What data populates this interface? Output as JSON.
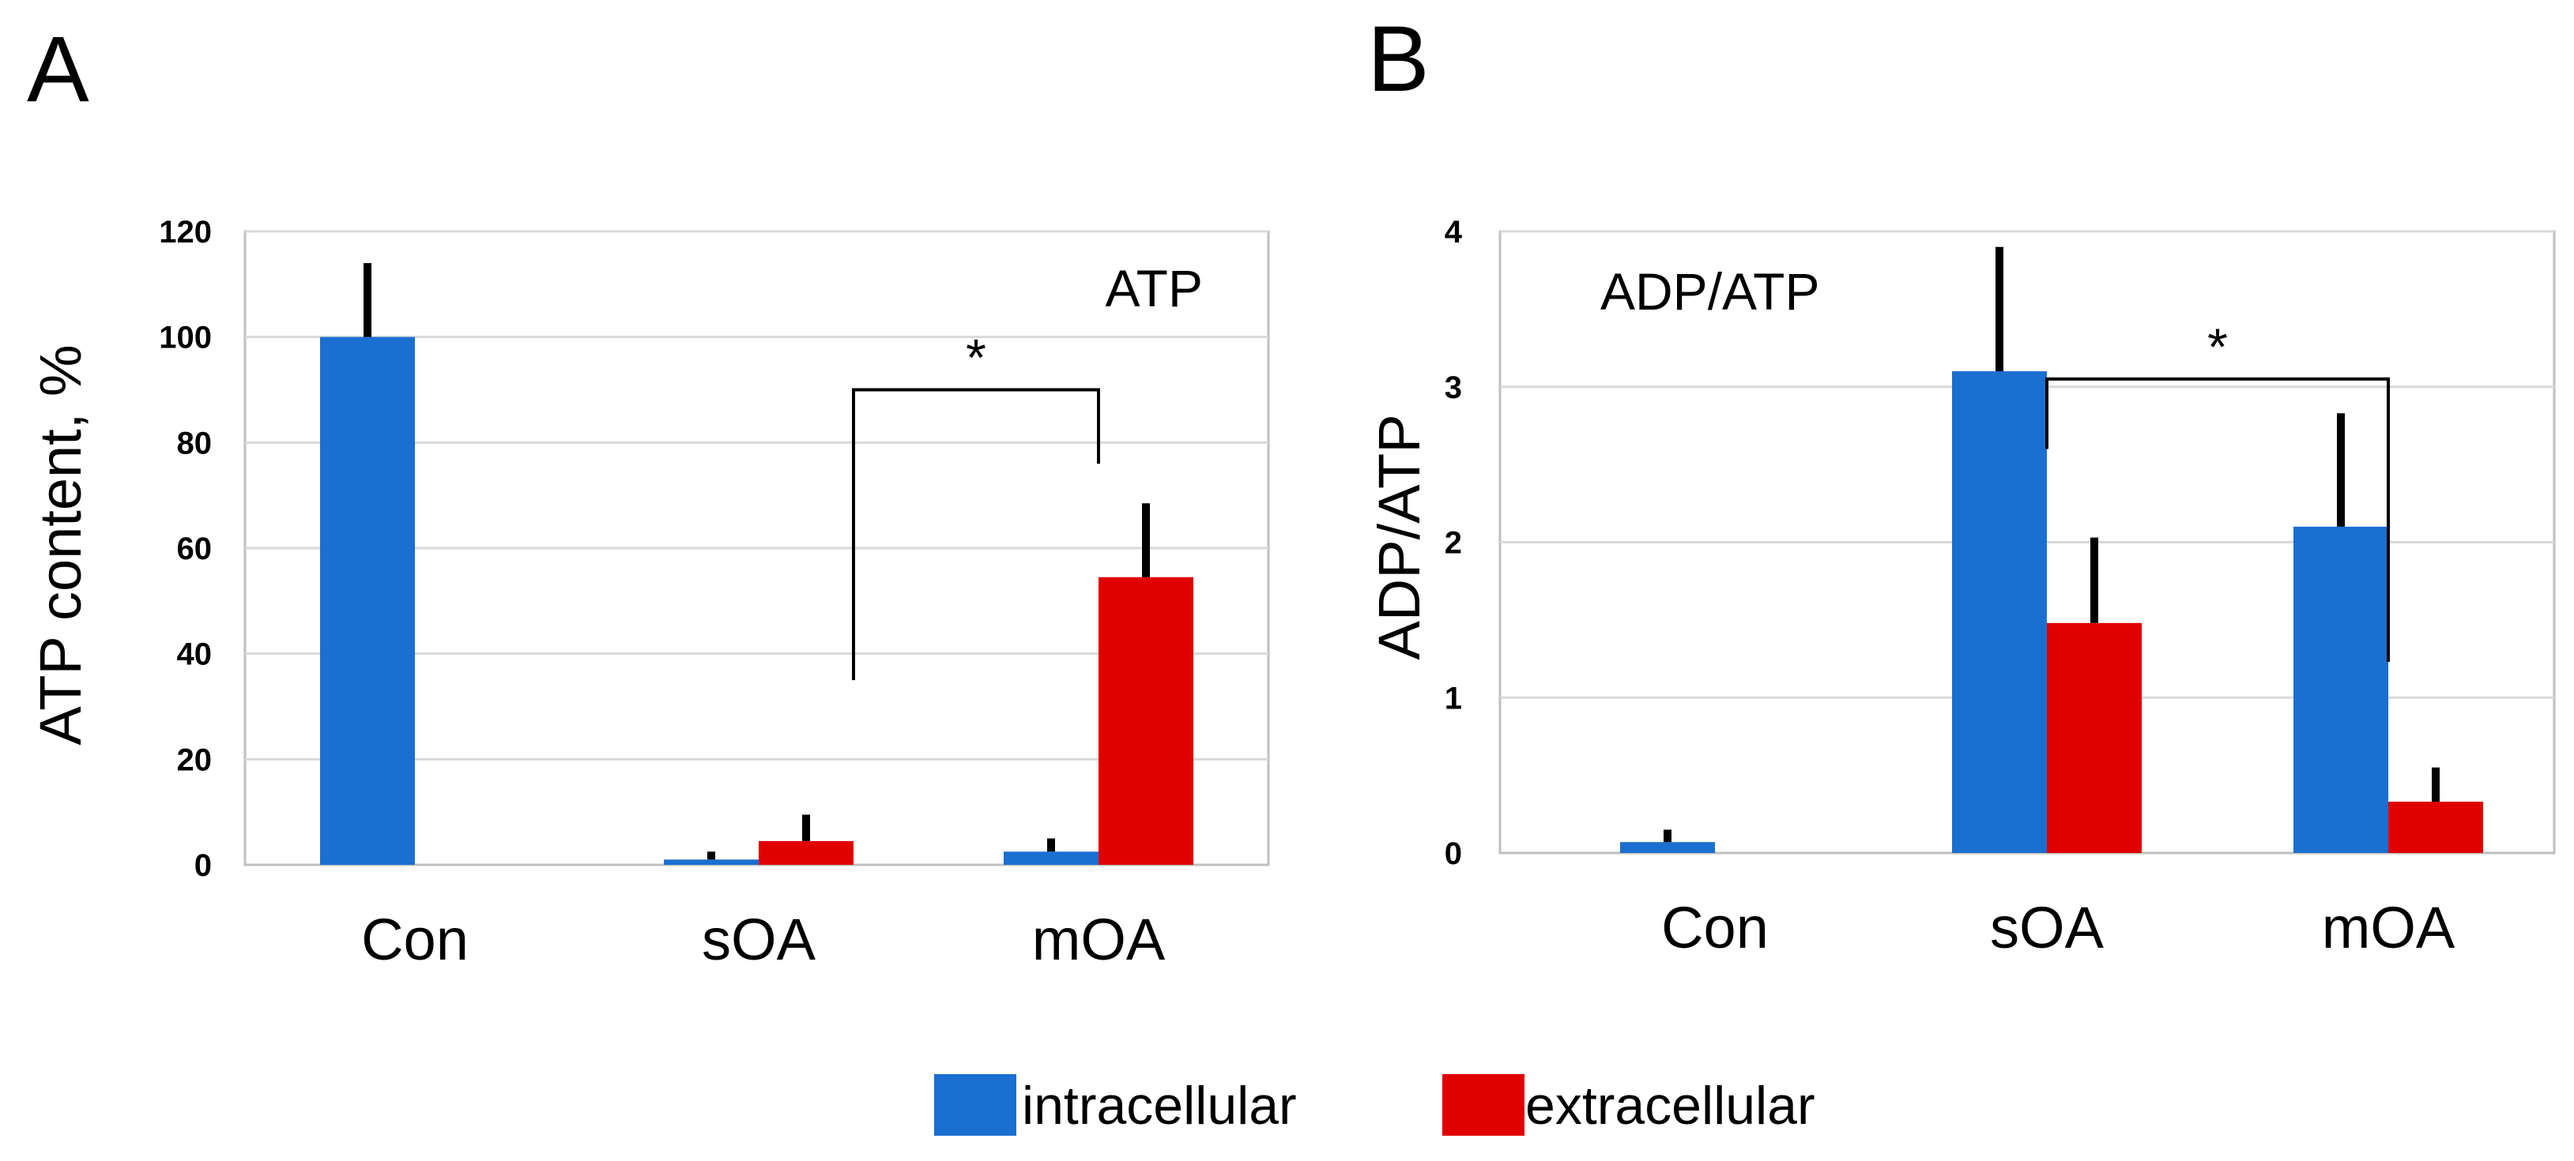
{
  "colors": {
    "intracellular": "#1a6fd0",
    "extracellular": "#e00000",
    "grid": "#d9d9d9",
    "frame": "#bfbfbf"
  },
  "legend": [
    {
      "name": "intracellular",
      "color": "#1a6fd0"
    },
    {
      "name": "extracellular",
      "color": "#e00000"
    }
  ],
  "chart_data": [
    {
      "panel": "A",
      "type": "bar",
      "inner_title": "ATP",
      "ylabel": "ATP content, %",
      "xlabel": "",
      "categories": [
        "Con",
        "sOA",
        "mOA"
      ],
      "ylim": [
        0,
        120
      ],
      "yticks": [
        "0",
        "20",
        "40",
        "60",
        "80",
        "100",
        "120"
      ],
      "grid": true,
      "series": [
        {
          "name": "intracellular",
          "values": [
            100,
            1,
            2.5
          ],
          "errors": [
            14,
            1.5,
            2.5
          ]
        },
        {
          "name": "extracellular",
          "values": [
            null,
            4.5,
            54.5
          ],
          "errors": [
            null,
            5,
            14
          ]
        }
      ],
      "significance": {
        "label": "*",
        "from": "sOA",
        "to": "mOA",
        "y": 90,
        "left_end": 35,
        "right_end": 76
      }
    },
    {
      "panel": "B",
      "type": "bar",
      "inner_title": "ADP/ATP",
      "ylabel": "ADP/ATP",
      "xlabel": "",
      "categories": [
        "Con",
        "sOA",
        "mOA"
      ],
      "ylim": [
        0,
        4
      ],
      "yticks": [
        "0",
        "1",
        "2",
        "3",
        "4"
      ],
      "grid": true,
      "series": [
        {
          "name": "intracellular",
          "values": [
            0.07,
            3.1,
            2.1
          ],
          "errors": [
            0.08,
            0.8,
            0.73
          ]
        },
        {
          "name": "extracellular",
          "values": [
            null,
            1.48,
            0.33
          ],
          "errors": [
            null,
            0.55,
            0.22
          ]
        }
      ],
      "significance": {
        "label": "*",
        "from": "sOA",
        "to": "mOA",
        "y": 3.05,
        "left_end": 2.6,
        "right_end": 1.23
      }
    }
  ]
}
